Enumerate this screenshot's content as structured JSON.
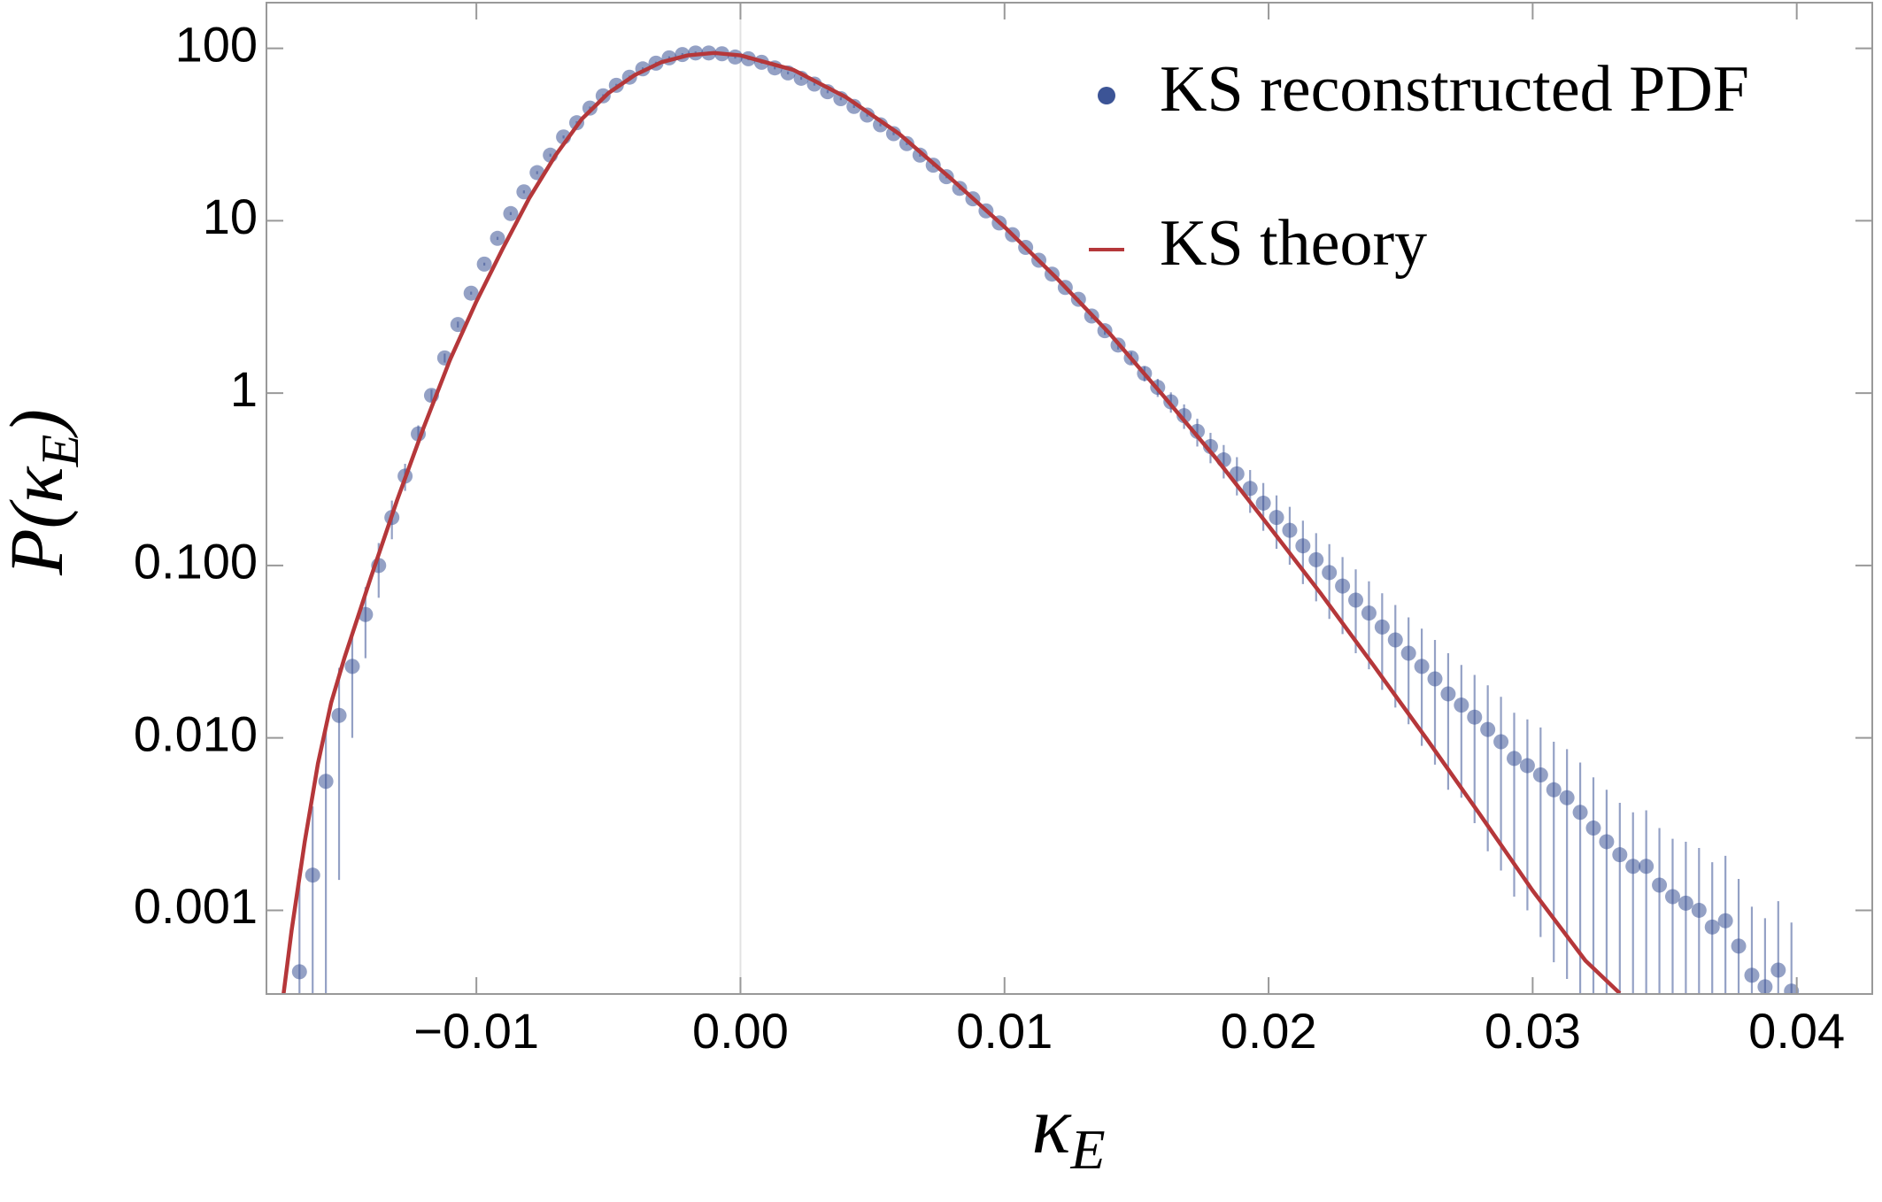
{
  "chart_data": {
    "type": "scatter",
    "xlim": [
      -0.01795,
      0.04286
    ],
    "ylim": [
      0.000327,
      184
    ],
    "ylog": true,
    "xticks": [
      {
        "value": -0.01,
        "label": "−0.01"
      },
      {
        "value": 0,
        "label": "0.00"
      },
      0.01,
      0.02,
      0.03,
      0.04
    ],
    "yticks": [
      0.001,
      {
        "value": 0.01,
        "label": "0.010"
      },
      {
        "value": 0.1,
        "label": "0.100"
      },
      1,
      10,
      100
    ],
    "xlabel": [
      "κ",
      "E"
    ],
    "ylabel": [
      "P(κ",
      "E",
      ")"
    ],
    "legend": "upper right",
    "series": [
      {
        "name": "KS reconstructed PDF",
        "type": "errorbar",
        "color": "#3c5496",
        "opacity": 0.55,
        "x": [
          -0.0167,
          -0.0162,
          -0.0157,
          -0.0152,
          -0.0147,
          -0.0142,
          -0.0137,
          -0.0132,
          -0.0127,
          -0.0122,
          -0.0117,
          -0.0112,
          -0.0107,
          -0.0102,
          -0.0097,
          -0.0092,
          -0.0087,
          -0.0082,
          -0.0077,
          -0.0072,
          -0.0067,
          -0.0062,
          -0.0057,
          -0.0052,
          -0.0047,
          -0.0042,
          -0.0037,
          -0.0032,
          -0.0027,
          -0.0022,
          -0.0017,
          -0.0012,
          -0.0007,
          -0.0002,
          0.0003,
          0.0008,
          0.0013,
          0.0018,
          0.0023,
          0.0028,
          0.0033,
          0.0038,
          0.0043,
          0.0048,
          0.0053,
          0.0058,
          0.0063,
          0.0068,
          0.0073,
          0.0078,
          0.0083,
          0.0088,
          0.0093,
          0.0098,
          0.0103,
          0.0108,
          0.0113,
          0.0118,
          0.0123,
          0.0128,
          0.0133,
          0.0138,
          0.0143,
          0.0148,
          0.0153,
          0.0158,
          0.0163,
          0.0168,
          0.0173,
          0.0178,
          0.0183,
          0.0188,
          0.0193,
          0.0198,
          0.0203,
          0.0208,
          0.0213,
          0.0218,
          0.0223,
          0.0228,
          0.0233,
          0.0238,
          0.0243,
          0.0248,
          0.0253,
          0.0258,
          0.0263,
          0.0268,
          0.0273,
          0.0278,
          0.0283,
          0.0288,
          0.0293,
          0.0298,
          0.0303,
          0.0308,
          0.0313,
          0.0318,
          0.0323,
          0.0328,
          0.0333,
          0.0338,
          0.0343,
          0.0348,
          0.0353,
          0.0358,
          0.0363,
          0.0368,
          0.0373,
          0.0378,
          0.0383,
          0.0388,
          0.0393,
          0.0398
        ],
        "values": [
          0.00044,
          0.0016,
          0.0056,
          0.0135,
          0.026,
          0.052,
          0.1,
          0.19,
          0.33,
          0.58,
          0.97,
          1.6,
          2.5,
          3.8,
          5.6,
          7.9,
          11,
          14.7,
          19,
          24,
          30.6,
          37,
          45,
          53,
          61,
          68,
          76,
          82,
          88,
          92,
          94,
          94,
          93,
          89,
          87,
          83,
          77,
          72,
          67,
          62,
          56,
          51,
          46,
          41,
          36,
          32,
          28,
          24,
          21,
          18,
          15.4,
          13.4,
          11.4,
          9.7,
          8.3,
          7.0,
          5.9,
          4.9,
          4.1,
          3.5,
          2.8,
          2.3,
          1.9,
          1.6,
          1.3,
          1.08,
          0.89,
          0.74,
          0.6,
          0.49,
          0.41,
          0.34,
          0.28,
          0.23,
          0.19,
          0.16,
          0.13,
          0.108,
          0.091,
          0.076,
          0.063,
          0.053,
          0.044,
          0.037,
          0.031,
          0.026,
          0.022,
          0.018,
          0.0155,
          0.0132,
          0.0112,
          0.0095,
          0.0076,
          0.0069,
          0.0061,
          0.005,
          0.0045,
          0.0037,
          0.003,
          0.0025,
          0.0021,
          0.0018,
          0.0018,
          0.0014,
          0.0012,
          0.0011,
          0.001,
          0.0008,
          0.00087,
          0.00062,
          0.00042,
          0.00036,
          0.00045,
          0.00034
        ],
        "errors": [
          0.0013,
          0.0024,
          0.0067,
          0.012,
          0.016,
          0.023,
          0.035,
          0.048,
          0.059,
          0.07,
          0.078,
          0.096,
          0.1,
          0.076,
          0.11,
          0.16,
          0.22,
          0.29,
          0.38,
          0.48,
          0.61,
          0.74,
          0.9,
          1.1,
          1.2,
          1.4,
          1.5,
          1.6,
          1.8,
          1.8,
          1.9,
          1.9,
          1.9,
          1.8,
          1.7,
          1.7,
          1.5,
          1.4,
          1.3,
          1.2,
          1.1,
          1.0,
          0.92,
          0.82,
          0.72,
          0.64,
          0.56,
          0.48,
          0.42,
          0.36,
          0.31,
          0.27,
          0.23,
          0.19,
          0.17,
          0.14,
          0.12,
          0.098,
          0.082,
          0.07,
          0.11,
          0.12,
          0.11,
          0.13,
          0.13,
          0.13,
          0.12,
          0.12,
          0.11,
          0.098,
          0.09,
          0.085,
          0.078,
          0.071,
          0.065,
          0.059,
          0.052,
          0.046,
          0.042,
          0.036,
          0.032,
          0.028,
          0.025,
          0.022,
          0.019,
          0.017,
          0.015,
          0.013,
          0.011,
          0.01,
          0.009,
          0.0078,
          0.0064,
          0.0059,
          0.0054,
          0.0045,
          0.0041,
          0.0035,
          0.0029,
          0.0025,
          0.0021,
          0.0019,
          0.002,
          0.0016,
          0.0014,
          0.0014,
          0.0013,
          0.0011,
          0.0012,
          0.0009,
          0.00063,
          0.00054,
          0.00068,
          0.00051
        ]
      },
      {
        "name": "KS theory",
        "type": "line",
        "color": "#b5373a",
        "x": [
          -0.0173,
          -0.017,
          -0.0165,
          -0.016,
          -0.0155,
          -0.015,
          -0.014,
          -0.013,
          -0.012,
          -0.011,
          -0.01,
          -0.009,
          -0.008,
          -0.007,
          -0.006,
          -0.005,
          -0.004,
          -0.003,
          -0.002,
          -0.001,
          0,
          0.002,
          0.004,
          0.006,
          0.008,
          0.01,
          0.012,
          0.014,
          0.016,
          0.018,
          0.02,
          0.022,
          0.024,
          0.026,
          0.028,
          0.03,
          0.032,
          0.0333
        ],
        "values": [
          0.00033,
          0.00076,
          0.0025,
          0.0071,
          0.016,
          0.029,
          0.085,
          0.24,
          0.63,
          1.56,
          3.4,
          6.9,
          13.5,
          24,
          39,
          55,
          70,
          83,
          91,
          94,
          91,
          75,
          52,
          32,
          17.4,
          9.2,
          4.6,
          2.2,
          0.97,
          0.42,
          0.17,
          0.068,
          0.026,
          0.0098,
          0.0036,
          0.0013,
          0.00051,
          0.00033
        ]
      }
    ]
  }
}
